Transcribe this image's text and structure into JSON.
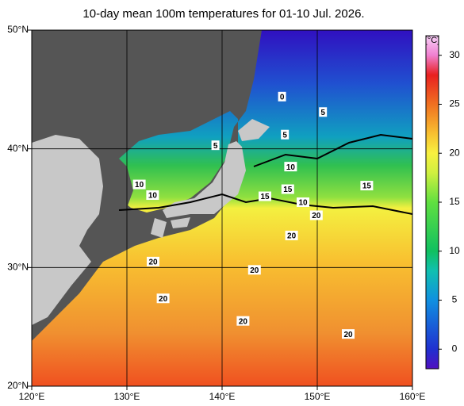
{
  "title": "10-day mean 100m temperatures for 01-10 Jul. 2026.",
  "map": {
    "xlim": [
      120,
      160
    ],
    "ylim": [
      20,
      50
    ],
    "xticks": [
      {
        "value": 120,
        "label": "120°E"
      },
      {
        "value": 130,
        "label": "130°E"
      },
      {
        "value": 140,
        "label": "140°E"
      },
      {
        "value": 150,
        "label": "150°E"
      },
      {
        "value": 160,
        "label": "160°E"
      }
    ],
    "yticks": [
      {
        "value": 20,
        "label": "20°N"
      },
      {
        "value": 30,
        "label": "30°N"
      },
      {
        "value": 40,
        "label": "40°N"
      },
      {
        "value": 50,
        "label": "50°N"
      }
    ],
    "grid": true,
    "contour_labels": [
      {
        "value": 0,
        "lon": 146.3,
        "lat": 44.4
      },
      {
        "value": 5,
        "lon": 150.6,
        "lat": 43.1
      },
      {
        "value": 5,
        "lon": 146.6,
        "lat": 41.2
      },
      {
        "value": 5,
        "lon": 139.3,
        "lat": 40.3
      },
      {
        "value": 10,
        "lon": 147.2,
        "lat": 38.5
      },
      {
        "value": 10,
        "lon": 131.3,
        "lat": 37.0
      },
      {
        "value": 10,
        "lon": 132.7,
        "lat": 36.1
      },
      {
        "value": 15,
        "lon": 146.9,
        "lat": 36.6
      },
      {
        "value": 15,
        "lon": 155.2,
        "lat": 36.9
      },
      {
        "value": 15,
        "lon": 144.5,
        "lat": 36.0
      },
      {
        "value": 10,
        "lon": 148.5,
        "lat": 35.5
      },
      {
        "value": 20,
        "lon": 149.9,
        "lat": 34.4
      },
      {
        "value": 20,
        "lon": 147.3,
        "lat": 32.7
      },
      {
        "value": 20,
        "lon": 132.75,
        "lat": 30.5
      },
      {
        "value": 20,
        "lon": 143.4,
        "lat": 29.8
      },
      {
        "value": 20,
        "lon": 133.8,
        "lat": 27.4
      },
      {
        "value": 20,
        "lon": 142.2,
        "lat": 25.5
      },
      {
        "value": 20,
        "lon": 153.25,
        "lat": 24.4
      }
    ]
  },
  "colorbar": {
    "unit": "[°C]",
    "lim": [
      -2,
      32
    ],
    "ticks": [
      0,
      5,
      10,
      15,
      20,
      25,
      30
    ],
    "colormap": [
      {
        "value": -2,
        "color": "#5010c0"
      },
      {
        "value": 0,
        "color": "#2030d0"
      },
      {
        "value": 5,
        "color": "#1090e0"
      },
      {
        "value": 8,
        "color": "#10c0b0"
      },
      {
        "value": 10,
        "color": "#10c060"
      },
      {
        "value": 15,
        "color": "#60e040"
      },
      {
        "value": 18,
        "color": "#d0f040"
      },
      {
        "value": 20,
        "color": "#f8f040"
      },
      {
        "value": 22,
        "color": "#f8c030"
      },
      {
        "value": 25,
        "color": "#f07020"
      },
      {
        "value": 28,
        "color": "#e82020"
      },
      {
        "value": 30,
        "color": "#f080d0"
      },
      {
        "value": 32,
        "color": "#f8d0f8"
      }
    ]
  }
}
